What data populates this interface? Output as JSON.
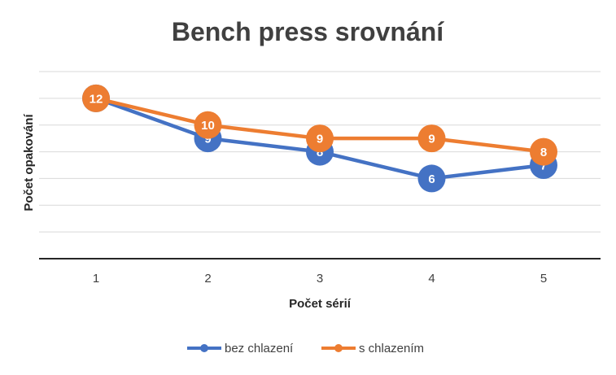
{
  "chart_data": {
    "type": "line",
    "title": "Bench press srovnání",
    "xlabel": "Počet sérií",
    "ylabel": "Počet opakování",
    "categories": [
      "1",
      "2",
      "3",
      "4",
      "5"
    ],
    "ylim": [
      0,
      12
    ],
    "grid": true,
    "legend_position": "bottom",
    "series": [
      {
        "name": "bez chlazení",
        "color": "#4472C4",
        "values": [
          12,
          9,
          8,
          6,
          7
        ]
      },
      {
        "name": "s chlazením",
        "color": "#ED7D31",
        "values": [
          12,
          10,
          9,
          9,
          8
        ]
      }
    ]
  }
}
